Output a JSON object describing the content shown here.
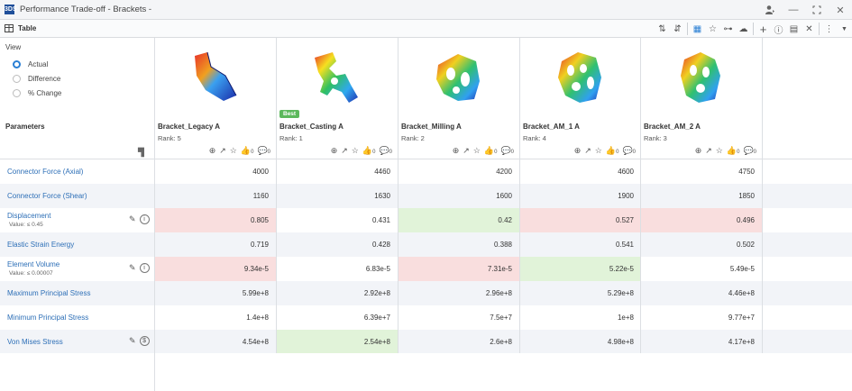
{
  "window": {
    "title": "Performance Trade-off - Brackets -",
    "logo": "3DS"
  },
  "toolbar": {
    "tab_label": "Table"
  },
  "view": {
    "title": "View",
    "options": [
      "Actual",
      "Difference",
      "% Change"
    ],
    "selected": "Actual"
  },
  "parameters_label": "Parameters",
  "designs": [
    {
      "name": "Bracket_Legacy A",
      "rank": "Rank: 5",
      "best": false
    },
    {
      "name": "Bracket_Casting A",
      "rank": "Rank: 1",
      "best": true,
      "badge": "Best"
    },
    {
      "name": "Bracket_Milling A",
      "rank": "Rank: 2",
      "best": false
    },
    {
      "name": "Bracket_AM_1 A",
      "rank": "Rank: 4",
      "best": false
    },
    {
      "name": "Bracket_AM_2 A",
      "rank": "Rank: 3",
      "best": false
    }
  ],
  "design_icon_count": "0",
  "rows": [
    {
      "name": "Connector Force (Axial)",
      "values": [
        "4000",
        "4460",
        "4200",
        "4600",
        "4750"
      ],
      "highlights": [
        "",
        "",
        "",
        "",
        ""
      ]
    },
    {
      "name": "Connector Force (Shear)",
      "values": [
        "1160",
        "1630",
        "1600",
        "1900",
        "1850"
      ],
      "highlights": [
        "",
        "",
        "",
        "",
        ""
      ]
    },
    {
      "name": "Displacement",
      "sub": "Value: ≤ 0.45",
      "values": [
        "0.805",
        "0.431",
        "0.42",
        "0.527",
        "0.496"
      ],
      "highlights": [
        "red",
        "",
        "green",
        "red",
        "red"
      ]
    },
    {
      "name": "Elastic Strain Energy",
      "values": [
        "0.719",
        "0.428",
        "0.388",
        "0.541",
        "0.502"
      ],
      "highlights": [
        "",
        "",
        "",
        "",
        ""
      ]
    },
    {
      "name": "Element Volume",
      "sub": "Value: ≤ 0.00007",
      "values": [
        "9.34e-5",
        "6.83e-5",
        "7.31e-5",
        "5.22e-5",
        "5.49e-5"
      ],
      "highlights": [
        "red",
        "",
        "red",
        "green",
        ""
      ]
    },
    {
      "name": "Maximum Principal Stress",
      "values": [
        "5.99e+8",
        "2.92e+8",
        "2.96e+8",
        "5.29e+8",
        "4.46e+8"
      ],
      "highlights": [
        "",
        "",
        "",
        "",
        ""
      ]
    },
    {
      "name": "Minimum Principal Stress",
      "values": [
        "1.4e+8",
        "6.39e+7",
        "7.5e+7",
        "1e+8",
        "9.77e+7"
      ],
      "highlights": [
        "",
        "",
        "",
        "",
        ""
      ]
    },
    {
      "name": "Von Mises Stress",
      "values": [
        "4.54e+8",
        "2.54e+8",
        "2.6e+8",
        "4.98e+8",
        "4.17e+8"
      ],
      "highlights": [
        "",
        "green",
        "",
        "",
        ""
      ]
    }
  ],
  "colors": {
    "link": "#2d6fb7",
    "red_highlight": "#f9dede",
    "green_highlight": "#e1f3d9",
    "best_badge": "#5cb85c",
    "radio_on": "#2a7fd4"
  }
}
